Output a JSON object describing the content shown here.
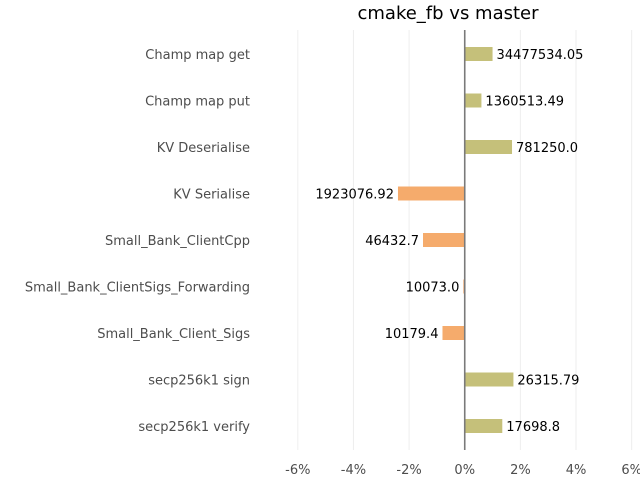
{
  "chart_data": {
    "type": "bar",
    "orientation": "horizontal",
    "title": "cmake_fb vs master",
    "xlabel": "",
    "ylabel": "",
    "xlim": [
      -7,
      6.3
    ],
    "xticks": [
      -6,
      -4,
      -2,
      0,
      2,
      4,
      6
    ],
    "xtick_labels": [
      "-6%",
      "-4%",
      "-2%",
      "0%",
      "2%",
      "4%",
      "6%"
    ],
    "grid": "vertical",
    "colors": {
      "positive": "#c5c07a",
      "negative": "#f5ab6c",
      "zero_line": "#7a7a7a"
    },
    "categories": [
      "Champ map get",
      "Champ map put",
      "KV Deserialise",
      "KV Serialise",
      "Small_Bank_ClientCpp",
      "Small_Bank_ClientSigs_Forwarding",
      "Small_Bank_Client_Sigs",
      "secp256k1 sign",
      "secp256k1 verify"
    ],
    "values": [
      1.0,
      0.6,
      1.7,
      -2.4,
      -1.5,
      -0.05,
      -0.8,
      1.75,
      1.35
    ],
    "data_labels": [
      "34477534.05",
      "1360513.49",
      "781250.0",
      "1923076.92",
      "46432.7",
      "10073.0",
      "10179.4",
      "26315.79",
      "17698.8"
    ]
  }
}
